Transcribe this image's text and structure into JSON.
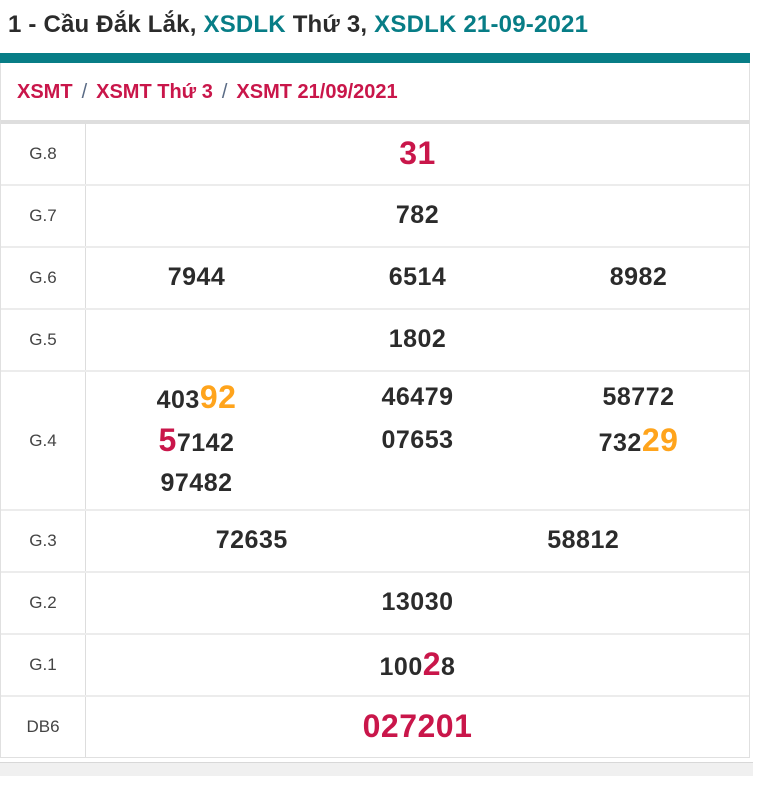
{
  "colors": {
    "teal": "#077d86",
    "crimson": "#c9164a",
    "orange": "#ffa41c",
    "dark_text": "#2b2b2b",
    "slash": "#5a6b85"
  },
  "title": {
    "segments": [
      {
        "text": "1 - Cầu Đắk Lắk, ",
        "style": "dark"
      },
      {
        "text": "XSDLK",
        "style": "teal"
      },
      {
        "text": " Thứ 3, ",
        "style": "dark"
      },
      {
        "text": "XSDLK 21-09-2021",
        "style": "teal"
      }
    ]
  },
  "breadcrumb": {
    "separator": "/",
    "items": [
      {
        "label": "XSMT"
      },
      {
        "label": "XSMT Thứ 3"
      },
      {
        "label": "XSMT 21/09/2021"
      }
    ]
  },
  "results": {
    "rows": [
      {
        "label": "G.8",
        "lines": [
          [
            [
              {
                "t": "31",
                "s": "red"
              }
            ]
          ]
        ]
      },
      {
        "label": "G.7",
        "lines": [
          [
            [
              {
                "t": "782",
                "s": "n"
              }
            ]
          ]
        ]
      },
      {
        "label": "G.6",
        "lines": [
          [
            [
              {
                "t": "7944",
                "s": "n"
              }
            ],
            [
              {
                "t": "6514",
                "s": "n"
              }
            ],
            [
              {
                "t": "8982",
                "s": "n"
              }
            ]
          ]
        ]
      },
      {
        "label": "G.5",
        "lines": [
          [
            [
              {
                "t": "1802",
                "s": "n"
              }
            ]
          ]
        ]
      },
      {
        "label": "G.4",
        "lines": [
          [
            [
              {
                "t": "403",
                "s": "n"
              },
              {
                "t": "92",
                "s": "orange"
              }
            ],
            [
              {
                "t": "46479",
                "s": "n"
              }
            ],
            [
              {
                "t": "58772",
                "s": "n"
              }
            ]
          ],
          [
            [
              {
                "t": "5",
                "s": "red"
              },
              {
                "t": "7142",
                "s": "n"
              }
            ],
            [
              {
                "t": "07653",
                "s": "n"
              }
            ],
            [
              {
                "t": "732",
                "s": "n"
              },
              {
                "t": "29",
                "s": "orange"
              }
            ]
          ],
          [
            [
              {
                "t": "97482",
                "s": "n"
              }
            ],
            [],
            []
          ]
        ]
      },
      {
        "label": "G.3",
        "lines": [
          [
            [
              {
                "t": "72635",
                "s": "n"
              }
            ],
            [
              {
                "t": "58812",
                "s": "n"
              }
            ]
          ]
        ]
      },
      {
        "label": "G.2",
        "lines": [
          [
            [
              {
                "t": "13030",
                "s": "n"
              }
            ]
          ]
        ]
      },
      {
        "label": "G.1",
        "lines": [
          [
            [
              {
                "t": "100",
                "s": "n"
              },
              {
                "t": "2",
                "s": "red"
              },
              {
                "t": "8",
                "s": "n"
              }
            ]
          ]
        ]
      },
      {
        "label": "DB6",
        "lines": [
          [
            [
              {
                "t": "027201",
                "s": "red"
              }
            ]
          ]
        ]
      }
    ]
  }
}
